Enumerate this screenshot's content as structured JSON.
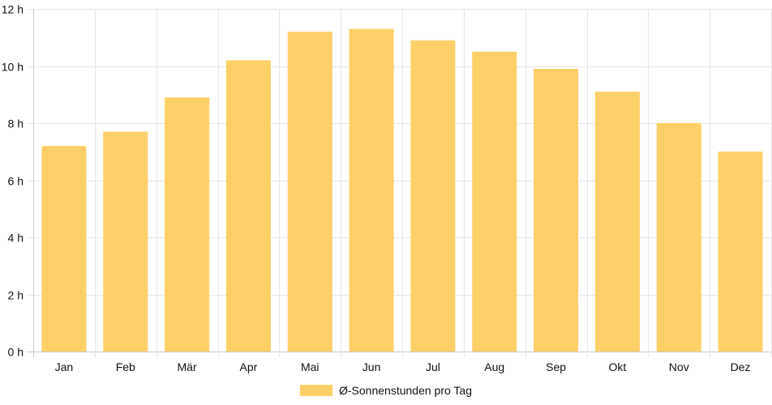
{
  "chart_data": {
    "type": "bar",
    "categories": [
      "Jan",
      "Feb",
      "Mär",
      "Apr",
      "Mai",
      "Jun",
      "Jul",
      "Aug",
      "Sep",
      "Okt",
      "Nov",
      "Dez"
    ],
    "series": [
      {
        "name": "Ø-Sonnenstunden pro Tag",
        "values": [
          7.2,
          7.7,
          8.9,
          10.2,
          11.2,
          11.3,
          10.9,
          10.5,
          9.9,
          9.1,
          8.0,
          7.0
        ],
        "color": "#fdd067"
      }
    ],
    "y_ticks": [
      "0 h",
      "2 h",
      "4 h",
      "6 h",
      "8 h",
      "10 h",
      "12 h"
    ],
    "ylim": [
      0,
      12
    ],
    "grid": true,
    "legend_position": "bottom"
  }
}
